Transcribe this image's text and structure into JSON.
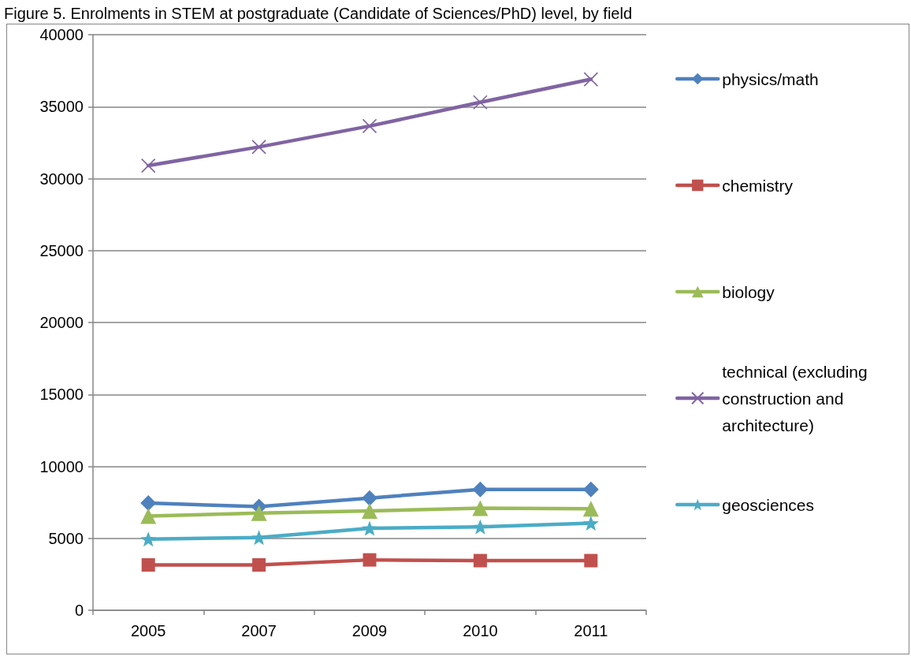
{
  "chart_data": {
    "type": "line",
    "title": "Figure 5. Enrolments in STEM at postgraduate (Candidate of Sciences/PhD) level, by field",
    "categories": [
      "2005",
      "2007",
      "2009",
      "2010",
      "2011"
    ],
    "series": [
      {
        "name": "physics/math",
        "color": "#4f81bd",
        "marker": "diamond",
        "values": [
          7450,
          7200,
          7800,
          8400,
          8400
        ]
      },
      {
        "name": "chemistry",
        "color": "#c0504d",
        "marker": "square",
        "values": [
          3150,
          3150,
          3500,
          3450,
          3450
        ]
      },
      {
        "name": "biology",
        "color": "#9bbb59",
        "marker": "triangle",
        "values": [
          6550,
          6750,
          6900,
          7100,
          7050
        ]
      },
      {
        "name": "technical (excluding construction and architecture)",
        "color": "#8064a2",
        "marker": "cross",
        "values": [
          30900,
          32200,
          33650,
          35300,
          36900
        ]
      },
      {
        "name": "geosciences",
        "color": "#4bacc6",
        "marker": "star",
        "values": [
          4950,
          5050,
          5700,
          5800,
          6050
        ]
      }
    ],
    "ylim": [
      0,
      40000
    ],
    "yticks": [
      0,
      5000,
      10000,
      15000,
      20000,
      25000,
      30000,
      35000,
      40000
    ],
    "grid": "y",
    "legend": "right",
    "line_style": "solid"
  }
}
